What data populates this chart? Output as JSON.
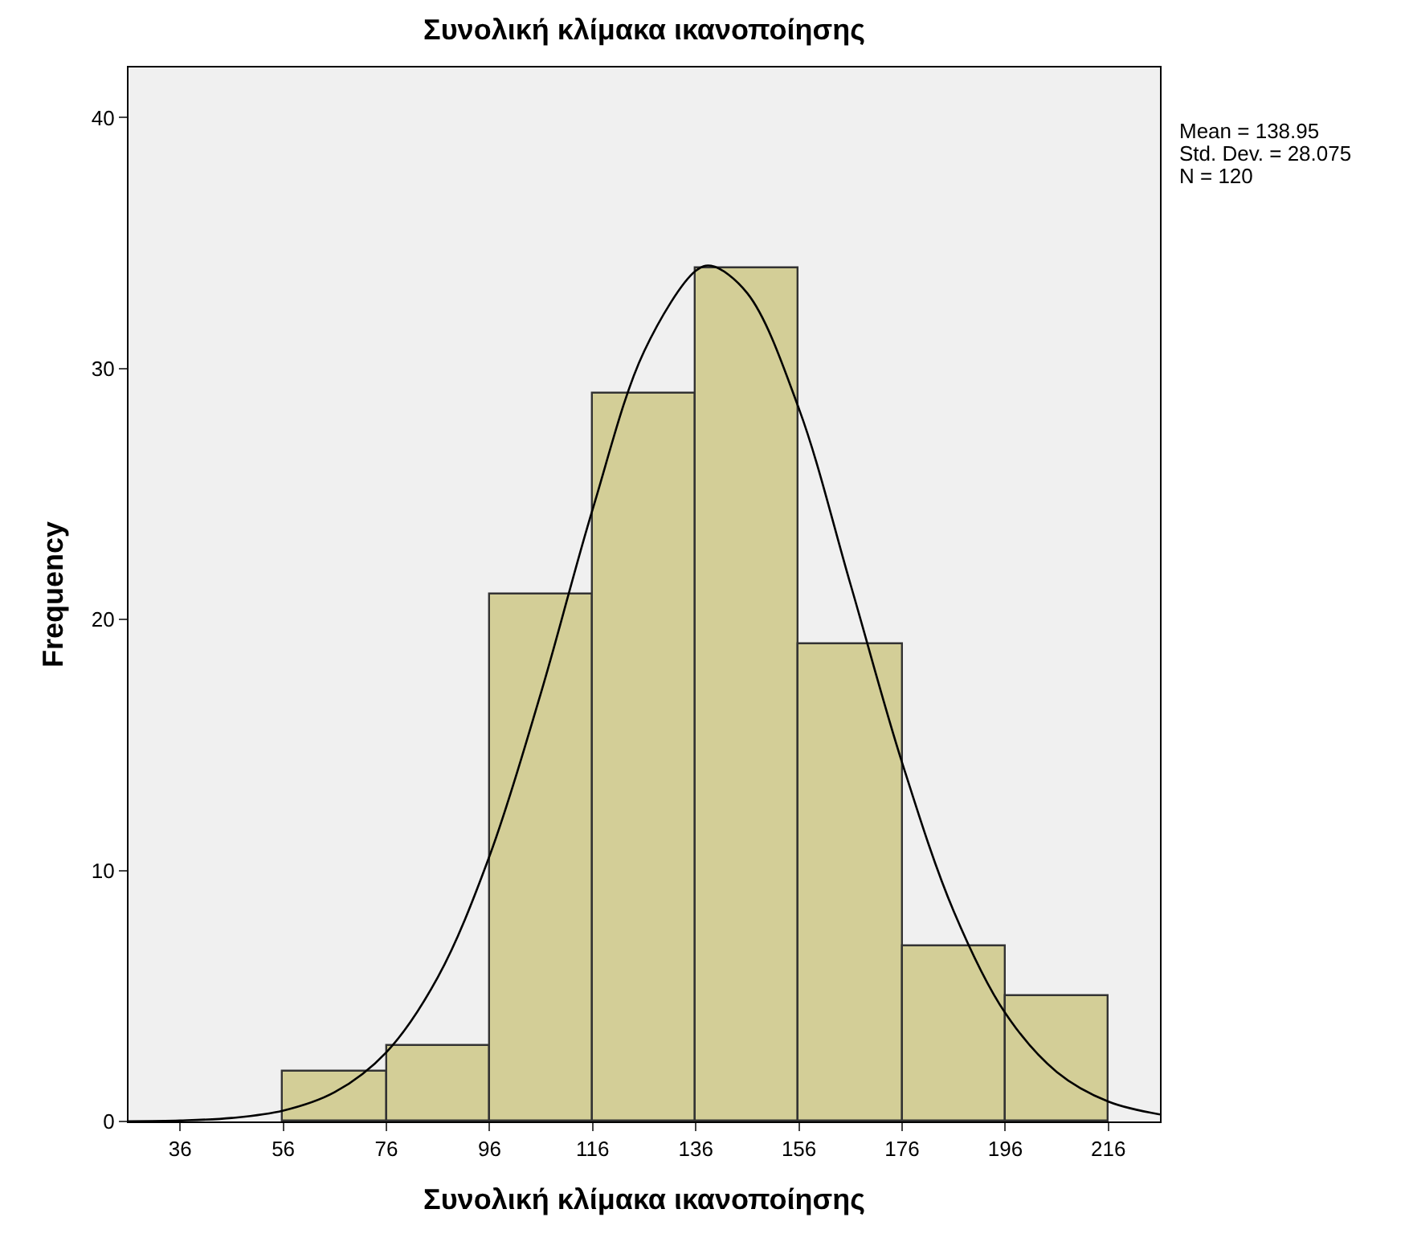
{
  "chart_data": {
    "type": "histogram",
    "title": "Συνολική κλίμακα ικανοποίησης",
    "xlabel": "Συνολική κλίμακα ικανοποίησης",
    "ylabel": "Frequency",
    "bins": [
      56,
      76,
      96,
      116,
      136,
      156,
      176,
      196,
      216
    ],
    "values": [
      2,
      3,
      21,
      29,
      34,
      19,
      7,
      5
    ],
    "color": "#d3ce97",
    "series": [
      {
        "type": "line",
        "color": "#000000",
        "x": [
          26,
          36,
          46,
          56,
          66,
          76,
          86,
          96,
          106,
          116,
          126,
          136,
          138.95,
          146,
          156,
          166,
          176,
          186,
          196,
          206,
          216,
          226
        ],
        "values": [
          0.01,
          0.04,
          0.14,
          0.43,
          1.17,
          2.76,
          5.76,
          10.58,
          17.1,
          24.4,
          30.7,
          33.9,
          34.1,
          33.0,
          28.4,
          21.4,
          14.3,
          8.38,
          4.32,
          1.97,
          0.79,
          0.28
        ]
      }
    ],
    "xlim": [
      26,
      226
    ],
    "xticks": [
      36,
      56,
      76,
      96,
      116,
      136,
      156,
      176,
      196,
      216
    ],
    "ylim": [
      0,
      42
    ],
    "yticks": [
      0,
      10,
      20,
      30,
      40
    ],
    "grid": false,
    "marker": "none",
    "annotations": [
      "Mean = 138.95",
      "Std. Dev. = 28.075",
      "N = 120"
    ]
  }
}
